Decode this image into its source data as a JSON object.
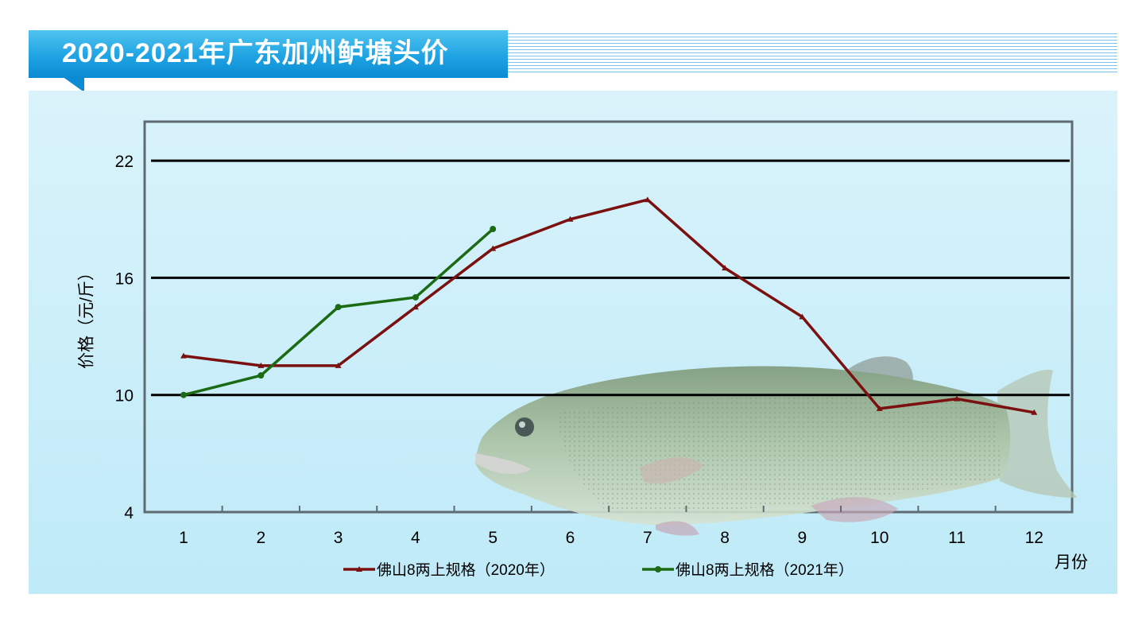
{
  "header": {
    "title": "2020-2021年广东加州鲈塘头价"
  },
  "chart_data": {
    "type": "line",
    "title": "2020-2021年广东加州鲈塘头价",
    "xlabel": "月份",
    "ylabel": "价格（元/斤）",
    "categories": [
      "1",
      "2",
      "3",
      "4",
      "5",
      "6",
      "7",
      "8",
      "9",
      "10",
      "11",
      "12"
    ],
    "yticks": [
      4,
      10,
      16,
      22
    ],
    "ylim": [
      4,
      24
    ],
    "grid": "horizontal",
    "legend_position": "bottom",
    "series": [
      {
        "name": "佛山8两上规格（2020年）",
        "color": "#7a1010",
        "marker": "triangle",
        "values": [
          12.0,
          11.5,
          11.5,
          14.5,
          17.5,
          19.0,
          20.0,
          16.5,
          14.0,
          9.3,
          9.8,
          9.1
        ]
      },
      {
        "name": "佛山8两上规格（2021年）",
        "color": "#1c6b14",
        "marker": "circle",
        "values": [
          10.0,
          11.0,
          14.5,
          15.0,
          18.5,
          null,
          null,
          null,
          null,
          null,
          null,
          null
        ]
      }
    ]
  }
}
